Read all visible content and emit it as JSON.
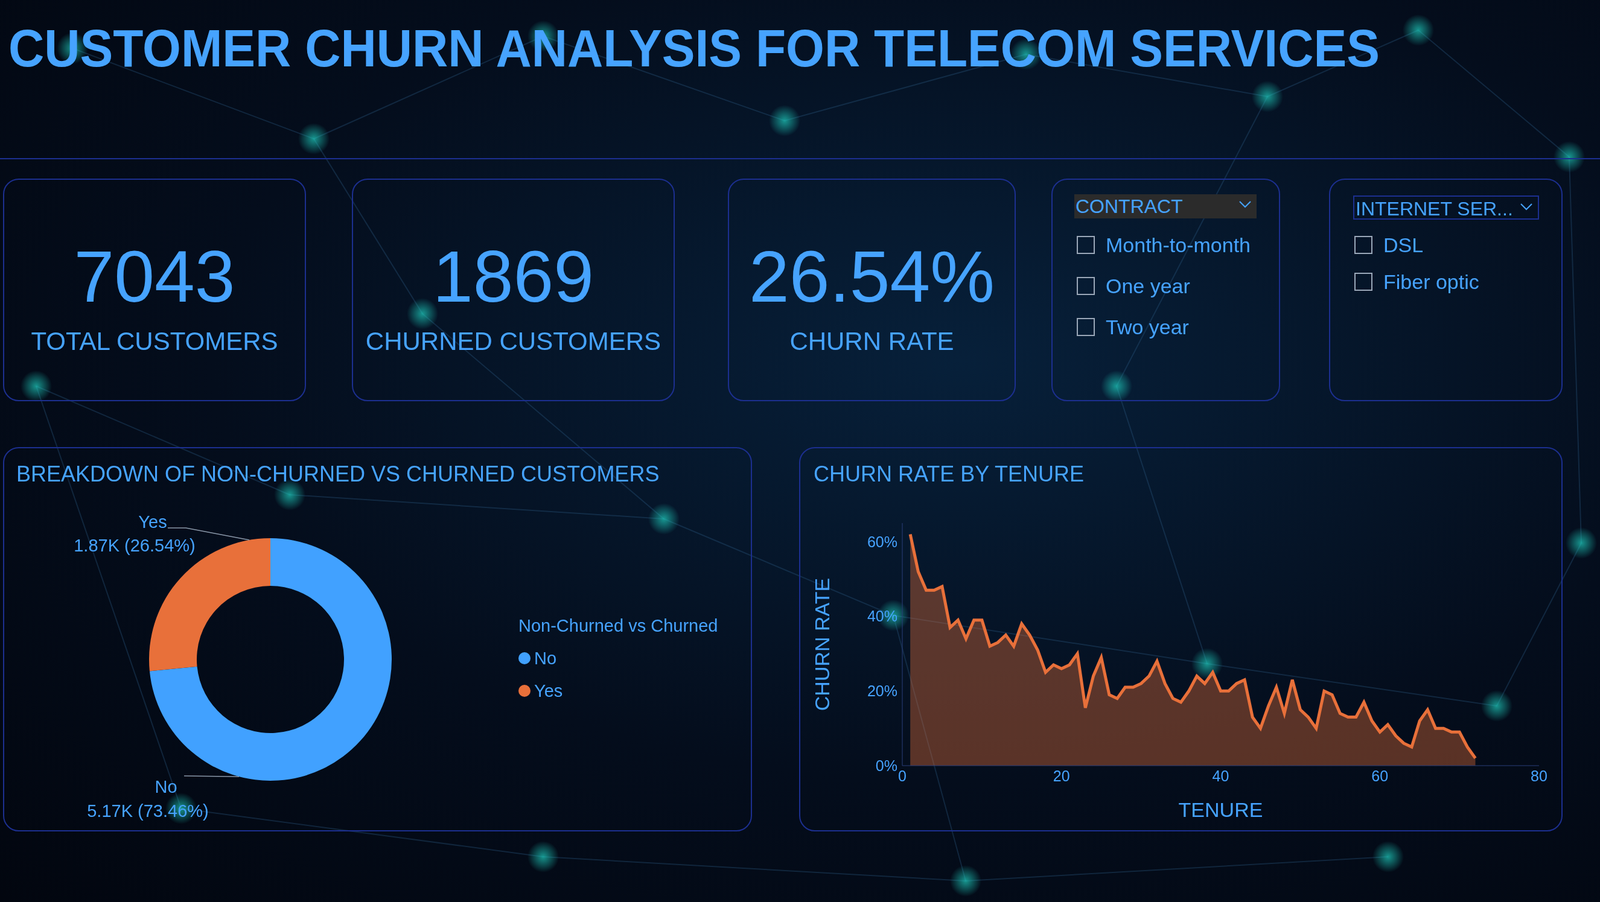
{
  "header": {
    "title": "CUSTOMER CHURN ANALYSIS FOR TELECOM SERVICES"
  },
  "kpis": [
    {
      "value": 7043,
      "label": "TOTAL CUSTOMERS"
    },
    {
      "value": 1869,
      "label": "CHURNED CUSTOMERS"
    },
    {
      "value": 26.54,
      "value_label": "26.54%",
      "label": "CHURN RATE"
    }
  ],
  "slicers": [
    {
      "title": "CONTRACT",
      "options": [
        "Month-to-month",
        "One year",
        "Two year"
      ]
    },
    {
      "title": "INTERNET SER...",
      "options": [
        "DSL",
        "Fiber optic"
      ]
    }
  ],
  "chart_data": [
    {
      "type": "donut",
      "title": "BREAKDOWN OF NON-CHURNED VS CHURNED CUSTOMERS",
      "legend_title": "Non-Churned vs Churned",
      "categories": [
        "No",
        "Yes"
      ],
      "values": [
        5174,
        1869
      ],
      "value_labels": [
        "5.17K (73.46%)",
        "1.87K (26.54%)"
      ],
      "colors": [
        "#41a1ff",
        "#e8703a"
      ],
      "data_labels": true,
      "legend": "right"
    },
    {
      "type": "area",
      "title": "CHURN RATE BY TENURE",
      "x_label": "TENURE",
      "y_label": "CHURN RATE",
      "x": [
        1,
        2,
        3,
        4,
        5,
        6,
        7,
        8,
        9,
        10,
        11,
        12,
        13,
        14,
        15,
        16,
        17,
        18,
        19,
        20,
        21,
        22,
        23,
        24,
        25,
        26,
        27,
        28,
        29,
        30,
        31,
        32,
        33,
        34,
        35,
        36,
        37,
        38,
        39,
        40,
        41,
        42,
        43,
        44,
        45,
        46,
        47,
        48,
        49,
        50,
        51,
        52,
        53,
        54,
        55,
        56,
        57,
        58,
        59,
        60,
        61,
        62,
        63,
        64,
        65,
        66,
        67,
        68,
        69,
        70,
        71,
        72
      ],
      "values": [
        62,
        52,
        47,
        47,
        48,
        37,
        39,
        34,
        39,
        39,
        32,
        33,
        35,
        32,
        38,
        35,
        31,
        25,
        27,
        26,
        27,
        30,
        15.5,
        24,
        29,
        19,
        18,
        21,
        21,
        22,
        24,
        28,
        22,
        18,
        17,
        20,
        24,
        22,
        25,
        20,
        20,
        22,
        23,
        13,
        10,
        16,
        21,
        14,
        23,
        15,
        13,
        10,
        20,
        19,
        14,
        13,
        13,
        17,
        12,
        9,
        11,
        8,
        6,
        5,
        12,
        15,
        10,
        10,
        9,
        9,
        5,
        2
      ],
      "color": "#e8703a",
      "grid": false,
      "xlim": [
        0,
        80
      ],
      "xticks": [
        0,
        20,
        40,
        60,
        80
      ],
      "ylim": [
        0,
        65
      ],
      "yticks": [
        {
          "value": 0,
          "label": "0%"
        },
        {
          "value": 20,
          "label": "20%"
        },
        {
          "value": 40,
          "label": "40%"
        },
        {
          "value": 60,
          "label": "60%"
        }
      ]
    }
  ]
}
